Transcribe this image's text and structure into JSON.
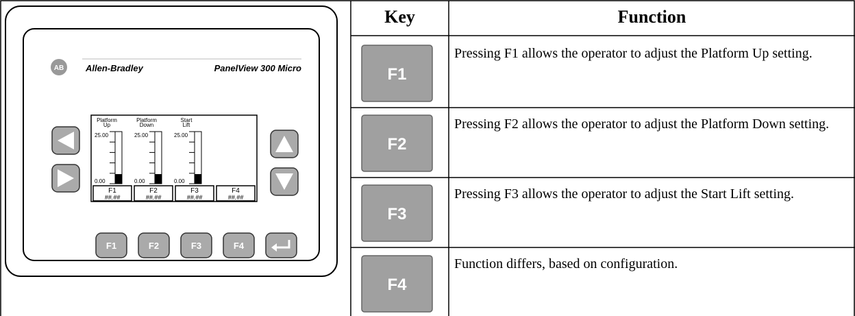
{
  "panel": {
    "logo": "AB",
    "brand": "Allen-Bradley",
    "model": "PanelView 300 Micro",
    "gauges": [
      {
        "label": [
          "Platform",
          "Up"
        ],
        "max": "25.00",
        "min": "0.00"
      },
      {
        "label": [
          "Platform",
          "Down"
        ],
        "max": "25.00",
        "min": "0.00"
      },
      {
        "label": [
          "Start",
          "Lift"
        ],
        "max": "25.00",
        "min": "0.00"
      }
    ],
    "fields": [
      {
        "key": "F1",
        "value": "##.##"
      },
      {
        "key": "F2",
        "value": "##.##"
      },
      {
        "key": "F3",
        "value": "##.##"
      },
      {
        "key": "F4",
        "value": "##.##"
      }
    ],
    "buttons": [
      "F1",
      "F2",
      "F3",
      "F4"
    ]
  },
  "table": {
    "header": [
      "Key",
      "Function"
    ],
    "rows": [
      {
        "key": "F1",
        "function": "Pressing F1 allows the operator to adjust the Platform Up setting."
      },
      {
        "key": "F2",
        "function": "Pressing F2 allows the operator to adjust the Platform Down setting."
      },
      {
        "key": "F3",
        "function": "Pressing F3 allows the operator to adjust the Start Lift setting."
      },
      {
        "key": "F4",
        "function": "Function differs, based on configuration."
      }
    ]
  }
}
